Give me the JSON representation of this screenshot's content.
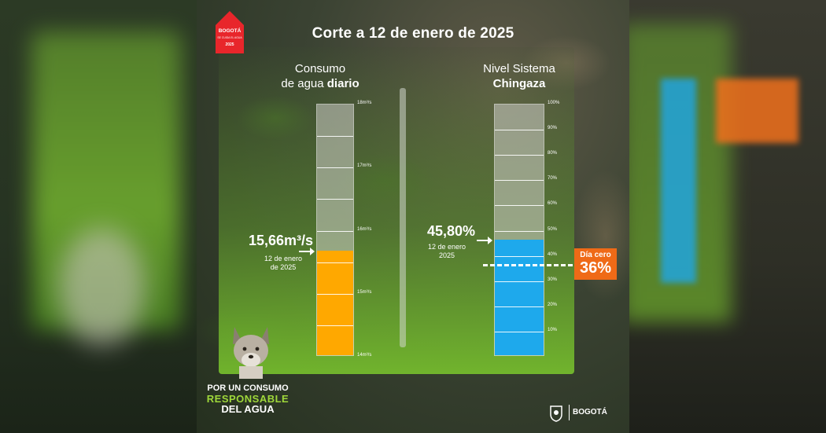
{
  "title": "Corte a 12 de enero de 2025",
  "left_heading": {
    "line1": "Consumo",
    "line2_prefix": "de agua ",
    "line2_bold": "diario"
  },
  "right_heading": {
    "line1": "Nivel Sistema",
    "line2_bold": "Chingaza"
  },
  "consumo": {
    "value_label": "15,66m³/s",
    "date_line1": "12 de enero",
    "date_line2": "de 2025",
    "fill_color": "#ffa800",
    "tick_labels": [
      "18m³/s",
      "17m³/s",
      "16m³/s",
      "15m³/s",
      "14m³/s"
    ]
  },
  "nivel": {
    "value_label": "45,80%",
    "date_line1": "12 de enero",
    "date_line2": "2025",
    "fill_color": "#1ea9ec",
    "tick_labels": [
      "100%",
      "90%",
      "80%",
      "70%",
      "60%",
      "50%",
      "40%",
      "30%",
      "20%",
      "10%"
    ]
  },
  "dia_cero": {
    "label": "Día cero",
    "value": "36%",
    "color": "#ef6a17"
  },
  "slogan": {
    "line1": "POR UN CONSUMO",
    "line2": "RESPONSABLE",
    "line3": "DEL AGUA"
  },
  "logo": {
    "house_text": "BOGOTÁ",
    "house_sub": "SE CUIDA EL AGUA",
    "house_year": "2025"
  },
  "footer": {
    "brand": "BOGOTÁ"
  },
  "chart_data": [
    {
      "type": "bar",
      "title": "Consumo de agua diario",
      "categories": [
        "12 de enero de 2025"
      ],
      "values": [
        15.66
      ],
      "unit": "m³/s",
      "ylim": [
        14,
        18
      ],
      "yticks": [
        "14m³/s",
        "15m³/s",
        "16m³/s",
        "17m³/s",
        "18m³/s"
      ]
    },
    {
      "type": "bar",
      "title": "Nivel Sistema Chingaza",
      "categories": [
        "12 de enero 2025"
      ],
      "values": [
        45.8
      ],
      "unit": "%",
      "ylim": [
        0,
        100
      ],
      "yticks": [
        "10%",
        "20%",
        "30%",
        "40%",
        "50%",
        "60%",
        "70%",
        "80%",
        "90%",
        "100%"
      ],
      "reference_line": {
        "label": "Día cero",
        "value": 36
      }
    }
  ]
}
